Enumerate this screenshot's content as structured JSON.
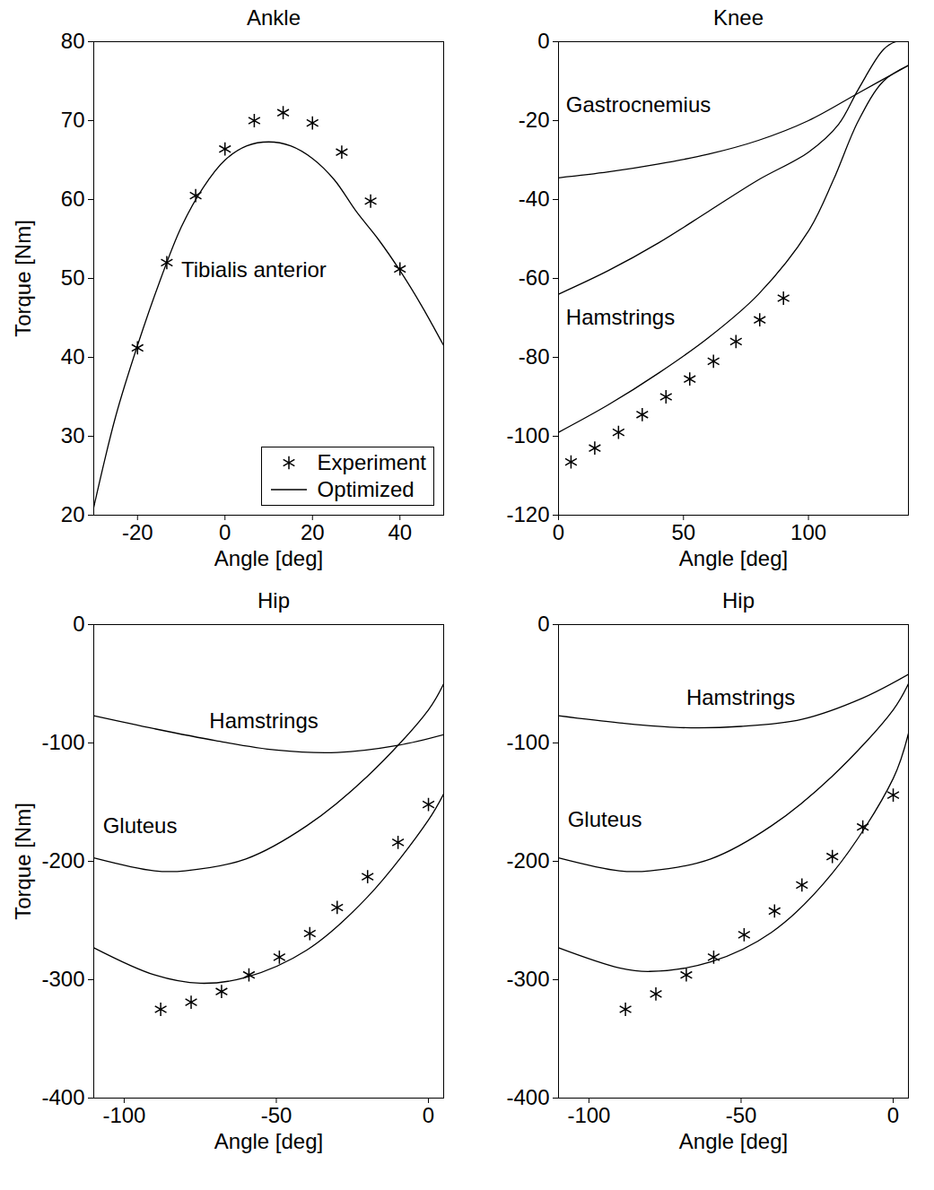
{
  "chart_data": [
    {
      "type": "line",
      "title": "Ankle",
      "x_label": "Angle [deg]",
      "y_label": "Torque [Nm]",
      "xlim": [
        -30,
        50
      ],
      "xticks": [
        -20,
        0,
        20,
        40
      ],
      "ylim": [
        20,
        80
      ],
      "yticks": [
        20,
        30,
        40,
        50,
        60,
        70,
        80
      ],
      "legend": "lower right",
      "series": [
        {
          "name": "Experiment",
          "type": "scatter",
          "marker": "asterisk",
          "color": "#000000",
          "x": [
            -20,
            -13.3,
            -6.7,
            0,
            6.7,
            13.3,
            20,
            26.7,
            33.3,
            40
          ],
          "values": [
            41.2,
            52,
            60.5,
            66.4,
            70,
            71,
            69.7,
            66,
            59.8,
            51.2
          ]
        },
        {
          "name": "Optimized",
          "type": "line",
          "line_style": "solid",
          "color": "#000000",
          "x": [
            -30,
            -25,
            -20,
            -15,
            -10,
            -5,
            0,
            5,
            10,
            15,
            20,
            25,
            30,
            35,
            40,
            45,
            50
          ],
          "values": [
            21,
            32.5,
            41.5,
            49.5,
            56.5,
            61.5,
            65,
            66.8,
            67.3,
            66.8,
            65.2,
            62.5,
            58.5,
            55,
            51,
            46.5,
            41.5
          ]
        }
      ],
      "annotations": [
        {
          "text": "Tibialis anterior",
          "x": -10,
          "y": 51
        }
      ]
    },
    {
      "type": "line",
      "title": "Knee",
      "x_label": "Angle [deg]",
      "xlim": [
        0,
        140
      ],
      "xticks": [
        0,
        50,
        100
      ],
      "ylim": [
        -120,
        0
      ],
      "yticks": [
        -120,
        -100,
        -80,
        -60,
        -40,
        -20,
        0
      ],
      "series": [
        {
          "name": "Experiment",
          "type": "scatter",
          "marker": "asterisk",
          "color": "#000000",
          "x": [
            5,
            14.5,
            24,
            33.5,
            43,
            52.5,
            62,
            71,
            80.5,
            90
          ],
          "values": [
            -106.5,
            -103,
            -99,
            -94.5,
            -90,
            -85.5,
            -81,
            -76,
            -70.5,
            -65
          ]
        },
        {
          "name": "Gastrocnemius",
          "type": "line",
          "line_style": "solid",
          "color": "#000000",
          "x": [
            0,
            20,
            40,
            60,
            80,
            100,
            120,
            140
          ],
          "values": [
            -34.5,
            -33,
            -31,
            -28.5,
            -25,
            -20,
            -13,
            -6
          ]
        },
        {
          "name": "Hamstrings",
          "type": "line",
          "line_style": "solid",
          "color": "#000000",
          "x": [
            0,
            20,
            40,
            60,
            80,
            100,
            112,
            120,
            130,
            135,
            140
          ],
          "values": [
            -64,
            -58,
            -51,
            -43,
            -35,
            -28,
            -21,
            -12,
            -2,
            0,
            0
          ]
        },
        {
          "name": "Optimized",
          "type": "line",
          "line_style": "solid",
          "color": "#000000",
          "x": [
            0,
            20,
            40,
            60,
            80,
            100,
            110,
            120,
            130,
            140
          ],
          "values": [
            -99,
            -92,
            -84,
            -75,
            -64,
            -48,
            -35,
            -20,
            -10,
            -6
          ]
        }
      ],
      "annotations": [
        {
          "text": "Gastrocnemius",
          "x": 3,
          "y": -16
        },
        {
          "text": "Hamstrings",
          "x": 3,
          "y": -70
        }
      ]
    },
    {
      "type": "line",
      "title": "Hip",
      "x_label": "Angle [deg]",
      "y_label": "Torque [Nm]",
      "xlim": [
        -110,
        5
      ],
      "xticks": [
        -100,
        -50,
        0
      ],
      "ylim": [
        -400,
        0
      ],
      "yticks": [
        -400,
        -300,
        -200,
        -100,
        0
      ],
      "series": [
        {
          "name": "Experiment",
          "type": "scatter",
          "marker": "asterisk",
          "color": "#000000",
          "x": [
            -88,
            -78,
            -68,
            -59,
            -49,
            -39,
            -30,
            -20,
            -10,
            0
          ],
          "values": [
            -325,
            -319,
            -310,
            -296,
            -281,
            -261,
            -239,
            -213,
            -184,
            -152
          ]
        },
        {
          "name": "Hamstrings",
          "type": "line",
          "line_style": "solid",
          "color": "#000000",
          "x": [
            -110,
            -90,
            -70,
            -50,
            -30,
            -10,
            5
          ],
          "values": [
            -77,
            -88,
            -98,
            -106,
            -108,
            -102,
            -93
          ]
        },
        {
          "name": "Gluteus",
          "type": "line",
          "line_style": "solid",
          "color": "#000000",
          "x": [
            -110,
            -90,
            -80,
            -60,
            -40,
            -20,
            0,
            5
          ],
          "values": [
            -197,
            -208,
            -208,
            -198,
            -170,
            -128,
            -72,
            -50
          ]
        },
        {
          "name": "Optimized",
          "type": "line",
          "line_style": "solid",
          "color": "#000000",
          "x": [
            -110,
            -90,
            -75,
            -60,
            -40,
            -20,
            0,
            5
          ],
          "values": [
            -273,
            -296,
            -303,
            -298,
            -275,
            -230,
            -165,
            -143
          ]
        }
      ],
      "annotations": [
        {
          "text": "Hamstrings",
          "x": -72,
          "y": -82
        },
        {
          "text": "Gluteus",
          "x": -107,
          "y": -170
        }
      ]
    },
    {
      "type": "line",
      "title": "Hip",
      "x_label": "Angle [deg]",
      "xlim": [
        -110,
        5
      ],
      "xticks": [
        -100,
        -50,
        0
      ],
      "ylim": [
        -400,
        0
      ],
      "yticks": [
        -400,
        -300,
        -200,
        -100,
        0
      ],
      "series": [
        {
          "name": "Experiment",
          "type": "scatter",
          "marker": "asterisk",
          "color": "#000000",
          "x": [
            -88,
            -78,
            -68,
            -59,
            -49,
            -39,
            -30,
            -20,
            -10,
            0
          ],
          "values": [
            -325,
            -312,
            -296,
            -281,
            -262,
            -242,
            -220,
            -196,
            -171,
            -144
          ]
        },
        {
          "name": "Hamstrings",
          "type": "line",
          "line_style": "solid",
          "color": "#000000",
          "x": [
            -110,
            -90,
            -70,
            -50,
            -30,
            -10,
            5
          ],
          "values": [
            -77,
            -83,
            -87,
            -86,
            -80,
            -62,
            -42
          ]
        },
        {
          "name": "Gluteus",
          "type": "line",
          "line_style": "solid",
          "color": "#000000",
          "x": [
            -110,
            -90,
            -80,
            -60,
            -40,
            -20,
            0,
            5
          ],
          "values": [
            -197,
            -208,
            -208,
            -198,
            -170,
            -128,
            -72,
            -50
          ]
        },
        {
          "name": "Optimized",
          "type": "line",
          "line_style": "solid",
          "color": "#000000",
          "x": [
            -110,
            -90,
            -80,
            -60,
            -40,
            -20,
            0,
            5
          ],
          "values": [
            -273,
            -290,
            -293,
            -285,
            -260,
            -210,
            -130,
            -92
          ]
        }
      ],
      "annotations": [
        {
          "text": "Hamstrings",
          "x": -68,
          "y": -62
        },
        {
          "text": "Gluteus",
          "x": -107,
          "y": -165
        }
      ]
    }
  ]
}
